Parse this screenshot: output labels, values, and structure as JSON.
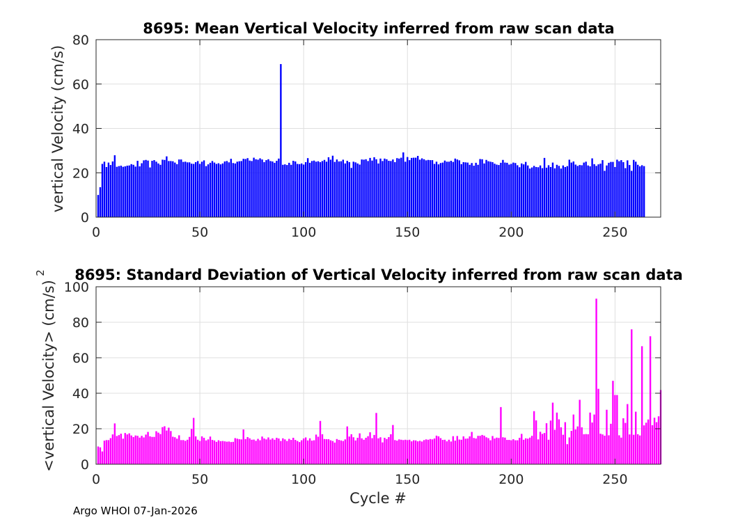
{
  "footer": "Argo WHOI 07-Jan-2026",
  "colors": {
    "mean_bar": "#0000ff",
    "std_bar": "#ff00ff",
    "grid": "#dfdfdf",
    "axis": "#262626"
  },
  "chart_data": [
    {
      "type": "bar",
      "title": "8695: Mean Vertical Velocity inferred from raw scan data",
      "xlabel": "",
      "ylabel": "vertical Velocity (cm/s)",
      "xlim": [
        0,
        272
      ],
      "ylim": [
        0,
        80
      ],
      "xticks": [
        "0",
        "50",
        "100",
        "150",
        "200",
        "250"
      ],
      "yticks": [
        "0",
        "20",
        "40",
        "60",
        "80"
      ],
      "grid": true,
      "series": [
        {
          "name": "mean vertical velocity",
          "color": "#0000ff",
          "values": [
            10.0,
            13.5,
            24.0,
            25.0,
            22.6,
            24.6,
            23.5,
            25.1,
            27.9,
            22.7,
            23.0,
            23.2,
            22.7,
            22.9,
            23.2,
            23.3,
            23.9,
            23.6,
            22.8,
            25.4,
            22.9,
            24.3,
            25.6,
            25.8,
            25.5,
            22.4,
            25.4,
            25.7,
            25.0,
            24.2,
            23.6,
            25.9,
            25.8,
            27.4,
            25.3,
            25.3,
            25.2,
            24.6,
            23.9,
            26.0,
            26.0,
            24.9,
            25.0,
            24.7,
            24.7,
            24.1,
            24.0,
            24.8,
            25.3,
            24.0,
            25.0,
            25.6,
            23.0,
            23.8,
            24.5,
            25.3,
            24.6,
            24.0,
            24.3,
            23.8,
            24.2,
            25.1,
            25.3,
            24.7,
            26.3,
            24.4,
            24.2,
            25.0,
            25.2,
            25.3,
            26.3,
            26.2,
            26.6,
            25.5,
            25.3,
            26.8,
            26.1,
            25.9,
            26.5,
            26.0,
            24.8,
            25.7,
            26.1,
            25.3,
            25.1,
            24.5,
            25.4,
            26.4,
            69.0,
            23.6,
            23.8,
            23.5,
            24.5,
            23.6,
            25.4,
            25.1,
            24.0,
            23.9,
            24.2,
            23.7,
            24.8,
            26.6,
            24.5,
            25.3,
            25.5,
            25.0,
            25.2,
            24.8,
            25.3,
            25.8,
            25.0,
            27.0,
            25.9,
            27.7,
            24.9,
            26.0,
            25.1,
            25.2,
            25.9,
            24.2,
            25.4,
            24.8,
            22.2,
            25.0,
            24.7,
            24.2,
            23.7,
            26.0,
            25.9,
            26.1,
            25.3,
            26.7,
            25.5,
            27.0,
            26.1,
            24.2,
            26.4,
            25.3,
            26.4,
            26.1,
            25.4,
            25.3,
            26.0,
            24.8,
            26.6,
            26.4,
            26.8,
            29.2,
            25.0,
            27.1,
            25.7,
            26.7,
            26.8,
            26.8,
            27.6,
            25.9,
            26.5,
            26.1,
            25.6,
            25.8,
            25.7,
            25.7,
            24.0,
            25.0,
            23.8,
            24.4,
            24.6,
            25.5,
            25.0,
            25.0,
            25.4,
            24.9,
            26.4,
            26.0,
            25.6,
            23.9,
            24.8,
            24.7,
            24.6,
            23.6,
            24.4,
            23.2,
            24.5,
            23.6,
            26.2,
            26.1,
            24.2,
            25.8,
            25.2,
            25.0,
            24.8,
            24.1,
            23.7,
            23.5,
            24.5,
            25.8,
            24.6,
            24.5,
            23.7,
            24.0,
            24.6,
            24.4,
            23.4,
            22.5,
            24.2,
            23.8,
            24.9,
            23.3,
            21.9,
            22.4,
            23.1,
            22.6,
            22.5,
            23.3,
            22.1,
            26.7,
            22.3,
            23.4,
            22.6,
            24.6,
            22.0,
            23.6,
            23.1,
            21.9,
            23.3,
            22.6,
            23.0,
            25.9,
            24.6,
            25.1,
            23.7,
            23.1,
            23.5,
            23.4,
            24.6,
            25.0,
            23.3,
            22.9,
            26.5,
            23.9,
            23.1,
            23.8,
            24.1,
            25.7,
            20.9,
            23.3,
            24.5,
            24.9,
            24.9,
            22.6,
            25.9,
            25.2,
            25.7,
            24.8,
            22.1,
            25.6,
            23.5,
            20.9,
            25.8,
            25.0,
            23.6,
            22.9,
            23.4,
            23.0
          ]
        }
      ]
    },
    {
      "type": "bar",
      "title": "8695: Standard Deviation of Vertical Velocity inferred from raw scan data",
      "xlabel": "Cycle #",
      "ylabel": "<vertical Velocity> (cm/s)",
      "ylabel_sup": "2",
      "xlim": [
        0,
        272
      ],
      "ylim": [
        0,
        100
      ],
      "xticks": [
        "0",
        "50",
        "100",
        "150",
        "200",
        "250"
      ],
      "yticks": [
        "0",
        "20",
        "40",
        "60",
        "80",
        "100"
      ],
      "grid": true,
      "series": [
        {
          "name": "std vertical velocity",
          "color": "#ff00ff",
          "values": [
            10.0,
            9.5,
            7.2,
            13.3,
            13.6,
            13.6,
            14.7,
            16.8,
            23.0,
            15.9,
            16.4,
            17.2,
            14.4,
            17.6,
            16.8,
            17.4,
            16.2,
            15.3,
            16.2,
            16.0,
            15.0,
            16.0,
            15.1,
            16.7,
            18.2,
            15.7,
            15.4,
            15.4,
            18.6,
            17.8,
            17.0,
            20.9,
            21.4,
            19.0,
            20.6,
            18.7,
            15.5,
            15.2,
            14.4,
            16.3,
            13.6,
            13.6,
            13.2,
            13.8,
            15.4,
            19.9,
            26.1,
            15.7,
            13.8,
            13.1,
            15.7,
            14.9,
            13.4,
            14.0,
            15.6,
            13.7,
            13.4,
            12.6,
            13.5,
            13.0,
            13.1,
            12.9,
            12.7,
            12.8,
            12.5,
            12.6,
            14.7,
            14.4,
            14.1,
            14.0,
            19.6,
            14.2,
            15.3,
            14.6,
            13.8,
            13.9,
            13.2,
            14.3,
            13.5,
            15.6,
            14.5,
            14.0,
            15.1,
            13.9,
            14.6,
            13.8,
            14.9,
            14.5,
            13.1,
            14.6,
            14.0,
            13.1,
            14.3,
            13.7,
            14.9,
            13.7,
            13.1,
            12.5,
            13.5,
            14.5,
            15.1,
            13.4,
            14.6,
            13.3,
            13.5,
            16.7,
            15.5,
            24.4,
            16.9,
            14.2,
            14.1,
            14.1,
            13.5,
            13.1,
            12.2,
            14.2,
            13.7,
            13.4,
            13.1,
            14.0,
            21.3,
            15.6,
            16.9,
            15.2,
            13.4,
            14.9,
            17.4,
            14.6,
            13.8,
            14.9,
            15.8,
            18.0,
            14.7,
            16.5,
            28.9,
            14.6,
            15.2,
            12.3,
            14.9,
            14.2,
            15.3,
            16.9,
            22.1,
            13.6,
            13.3,
            14.0,
            13.8,
            13.6,
            13.8,
            13.6,
            13.8,
            12.9,
            13.5,
            13.4,
            12.9,
            13.2,
            12.8,
            13.6,
            14.0,
            13.8,
            14.2,
            14.0,
            14.5,
            16.1,
            15.7,
            14.7,
            13.7,
            13.8,
            12.9,
            13.8,
            12.8,
            15.8,
            13.3,
            15.9,
            13.9,
            13.8,
            15.7,
            14.4,
            14.5,
            15.7,
            18.2,
            14.8,
            14.5,
            16.0,
            16.0,
            16.5,
            16.1,
            15.2,
            14.7,
            13.5,
            15.9,
            14.5,
            15.0,
            14.8,
            32.2,
            15.2,
            15.0,
            13.7,
            13.7,
            13.5,
            14.1,
            13.5,
            13.5,
            14.9,
            17.1,
            13.8,
            14.6,
            14.4,
            15.0,
            16.0,
            29.9,
            24.7,
            14.0,
            18.3,
            17.1,
            17.6,
            23.1,
            13.8,
            24.6,
            34.7,
            19.4,
            29.1,
            25.3,
            20.8,
            16.6,
            23.7,
            11.3,
            15.1,
            18.8,
            28.0,
            19.6,
            21.3,
            36.3,
            20.8,
            16.9,
            17.0,
            16.9,
            29.1,
            23.5,
            28.0,
            93.3,
            42.5,
            17.2,
            16.8,
            16.1,
            30.7,
            16.3,
            22.8,
            47.0,
            39.0,
            39.0,
            16.3,
            15.0,
            25.9,
            23.3,
            33.9,
            16.8,
            76.0,
            16.6,
            29.6,
            16.9,
            16.2,
            66.5,
            21.9,
            23.4,
            25.2,
            72.1,
            22.0,
            26.2,
            23.7,
            27.0,
            41.8
          ]
        }
      ]
    }
  ]
}
